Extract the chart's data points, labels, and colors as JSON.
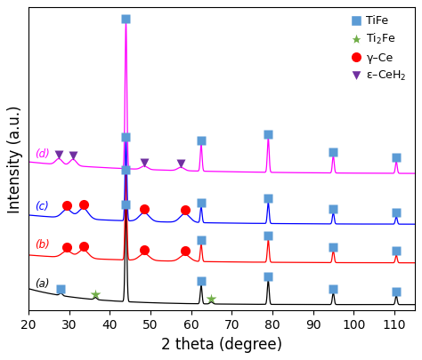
{
  "xlabel": "2 theta (degree)",
  "ylabel": "Intensity (a.u.)",
  "xlim": [
    20,
    115
  ],
  "background_color": "#ffffff",
  "curve_colors": [
    "#000000",
    "#ff0000",
    "#0000ff",
    "#ff00ff"
  ],
  "curve_labels": [
    "(a)",
    "(b)",
    "(c)",
    "(d)"
  ],
  "curve_offsets": [
    0.0,
    0.14,
    0.27,
    0.44
  ],
  "marker_TiFe_color": "#5B9BD5",
  "marker_Ti2Fe_color": "#70AD47",
  "marker_gammaCe_color": "#FF0000",
  "marker_epsCeH2_color": "#7030A0",
  "legend_fontsize": 9,
  "axis_fontsize": 12,
  "tick_fontsize": 10,
  "tife_peaks": [
    44.0,
    62.5,
    79.0,
    95.0,
    110.5
  ],
  "tife_peaks_all": [
    44.0,
    62.5,
    79.0,
    95.0,
    110.5
  ],
  "ti2fe_peaks_a": [
    36.5,
    65.0
  ],
  "tife_marker_a": [
    28.0
  ],
  "gamma_ce_b": [
    29.5,
    33.5,
    48.5,
    58.5
  ],
  "gamma_ce_c": [
    29.5,
    33.5,
    48.5,
    58.5
  ],
  "eps_ceh2_d": [
    27.5,
    31.0,
    48.5,
    57.5
  ]
}
